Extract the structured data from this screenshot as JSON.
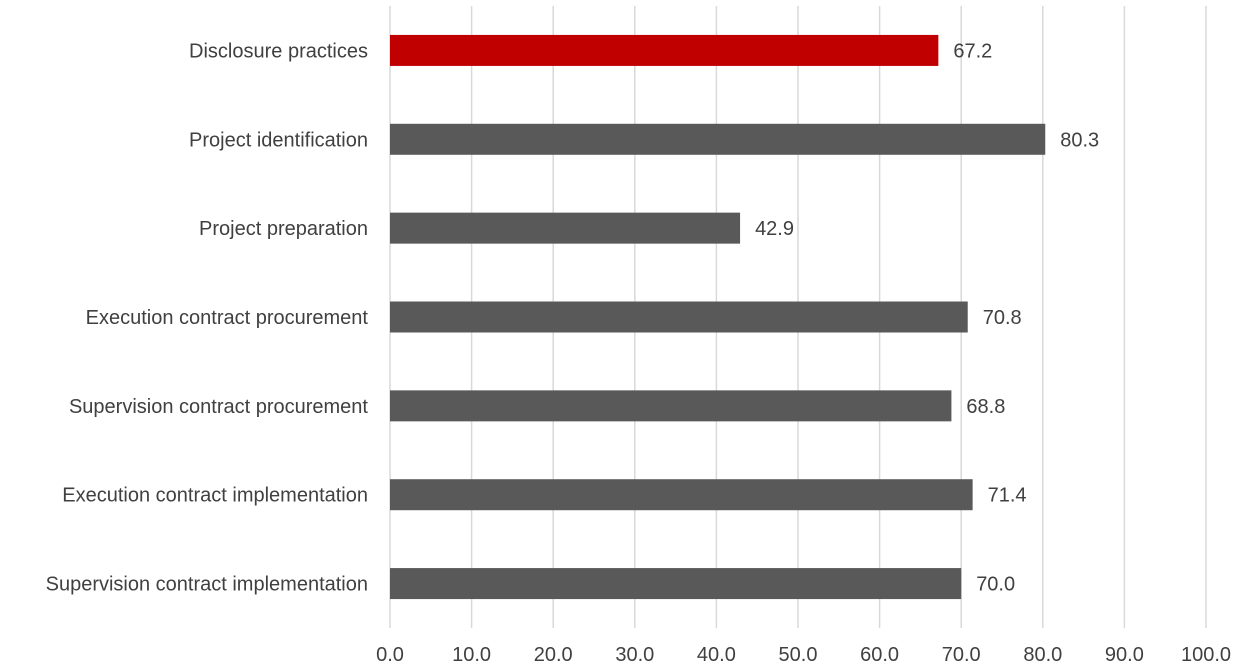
{
  "chart_data": {
    "type": "bar",
    "orientation": "horizontal",
    "categories": [
      "Disclosure practices",
      "Project identification",
      "Project preparation",
      "Execution contract procurement",
      "Supervision contract procurement",
      "Execution contract implementation",
      "Supervision contract implementation"
    ],
    "values": [
      67.2,
      80.3,
      42.9,
      70.8,
      68.8,
      71.4,
      70.0
    ],
    "data_labels": [
      "67.2",
      "80.3",
      "42.9",
      "70.8",
      "68.8",
      "71.4",
      "70.0"
    ],
    "title": "",
    "xlabel": "",
    "ylabel": "",
    "xlim": [
      0,
      100
    ],
    "x_ticks": [
      0,
      10,
      20,
      30,
      40,
      50,
      60,
      70,
      80,
      90,
      100
    ],
    "x_tick_labels": [
      "0.0",
      "10.0",
      "20.0",
      "30.0",
      "40.0",
      "50.0",
      "60.0",
      "70.0",
      "80.0",
      "90.0",
      "100.0"
    ],
    "grid": "vertical",
    "legend": "none",
    "colors": {
      "highlight": "#c00000",
      "default": "#595959",
      "grid": "#d9d9d9",
      "text": "#404040"
    },
    "highlight_index": 0
  }
}
